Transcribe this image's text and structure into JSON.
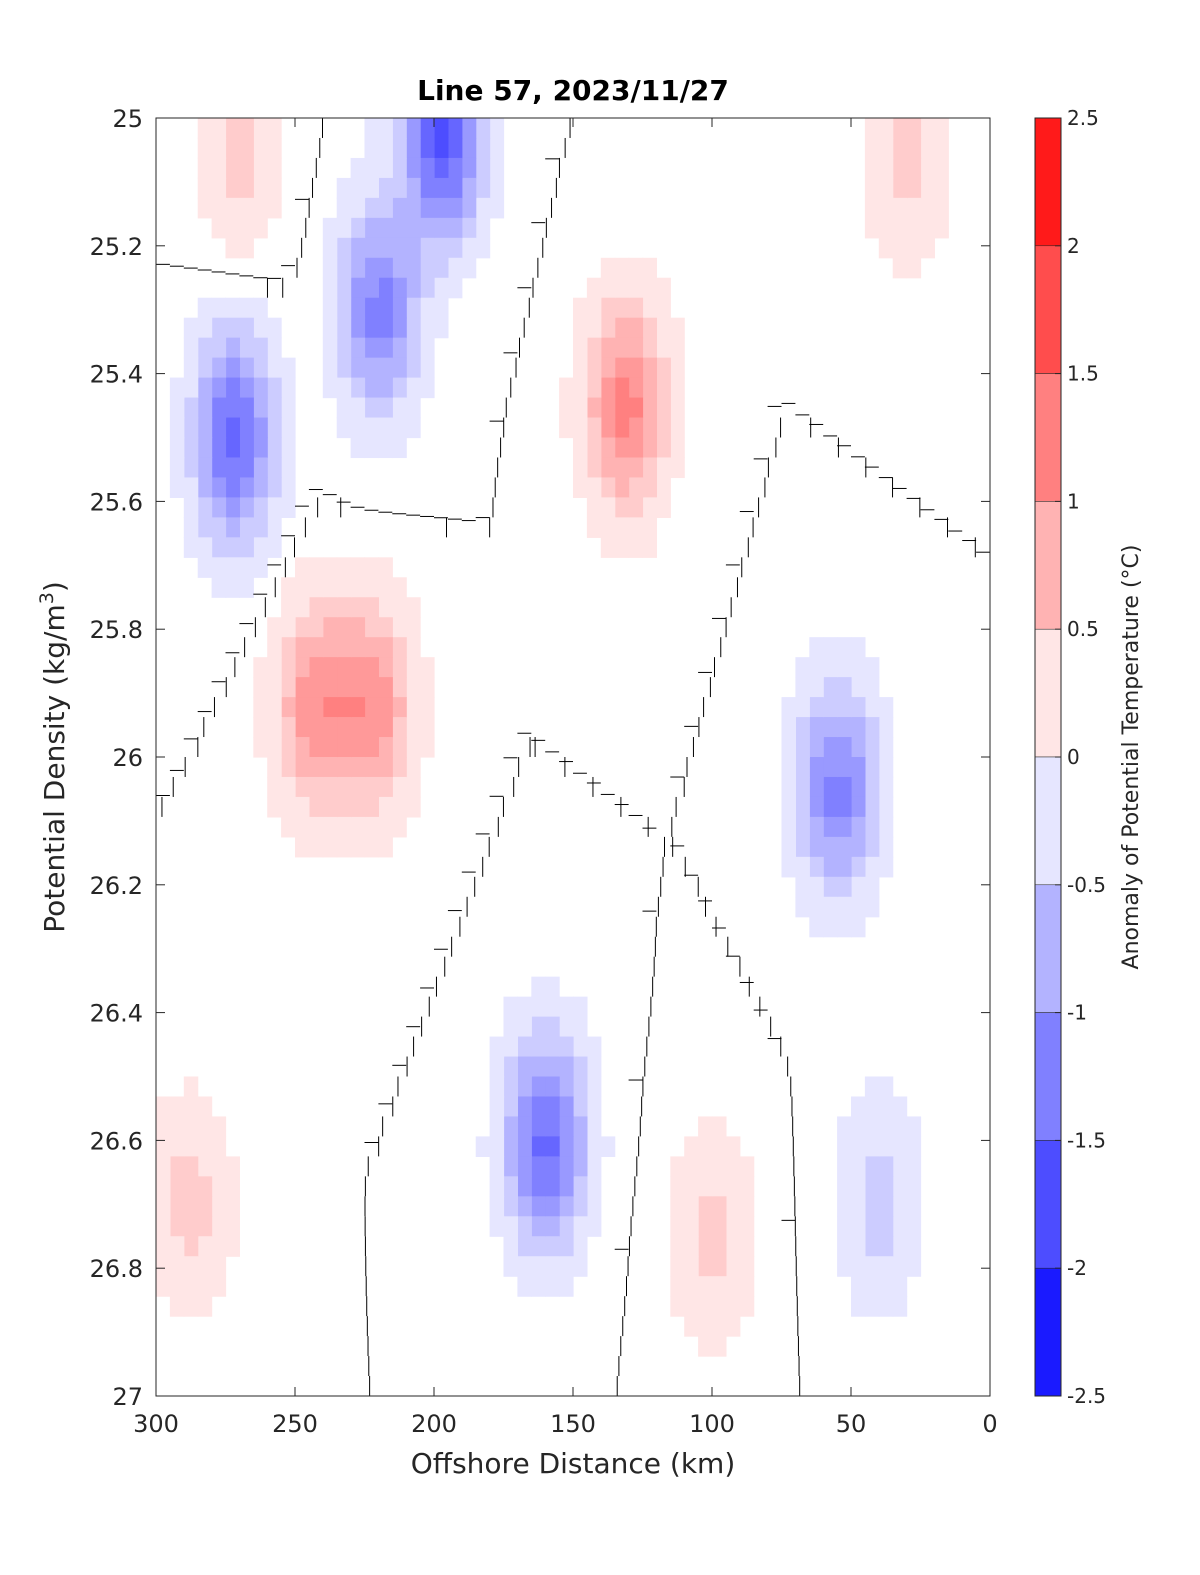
{
  "chart_data": {
    "type": "contourf",
    "title": "Line 57, 2023/11/27",
    "xlabel": "Offshore Distance (km)",
    "ylabel": "Potential Density (kg/m",
    "ylabel_sup": "3",
    "ylabel_tail": ")",
    "colorbar_label": "Anomaly of Potential Temperature (°C)",
    "xlim": [
      300,
      0
    ],
    "ylim": [
      25,
      27
    ],
    "x_reversed": true,
    "y_reversed": true,
    "xticks": [
      300,
      250,
      200,
      150,
      100,
      50,
      0
    ],
    "xtick_labels": [
      "300",
      "250",
      "200",
      "150",
      "100",
      "50",
      "0"
    ],
    "yticks": [
      25,
      25.2,
      25.4,
      25.6,
      25.8,
      26,
      26.2,
      26.4,
      26.6,
      26.8,
      27
    ],
    "ytick_labels": [
      "25",
      "25.2",
      "25.4",
      "25.6",
      "25.8",
      "26",
      "26.2",
      "26.4",
      "26.6",
      "26.8",
      "27"
    ],
    "colorbar": {
      "range": [
        -2.5,
        2.5
      ],
      "step": 0.25,
      "tick_values": [
        2.5,
        2,
        1.5,
        1,
        0.5,
        0,
        -0.5,
        -1,
        -1.5,
        -2,
        -2.5
      ],
      "tick_labels": [
        "2.5",
        "2",
        "1.5",
        "1",
        "0.5",
        "0",
        "-0.5",
        "-1",
        "-1.5",
        "-2",
        "-2.5"
      ],
      "colors": {
        "neg_max": "#0000ff",
        "zero": "#ffffff",
        "pos_max": "#ff0000"
      }
    },
    "anomaly_cores": [
      {
        "x": 272,
        "y": 25.5,
        "value": -1.5
      },
      {
        "x": 220,
        "y": 25.3,
        "value": -1.25
      },
      {
        "x": 197,
        "y": 25.02,
        "value": -1.75
      },
      {
        "x": 243,
        "y": 25.92,
        "value": 1.0
      },
      {
        "x": 222,
        "y": 25.92,
        "value": 1.0
      },
      {
        "x": 160,
        "y": 26.6,
        "value": -1.5
      },
      {
        "x": 131,
        "y": 25.45,
        "value": 1.25
      },
      {
        "x": 55,
        "y": 26.05,
        "value": -1.25
      },
      {
        "x": 288,
        "y": 26.7,
        "value": 0.5
      },
      {
        "x": 100,
        "y": 26.75,
        "value": 0.5
      },
      {
        "x": 30,
        "y": 25.05,
        "value": 0.5
      },
      {
        "x": 270,
        "y": 25.05,
        "value": 0.5
      },
      {
        "x": 40,
        "y": 26.7,
        "value": -0.5
      }
    ],
    "zero_contour_present": true,
    "grid": false
  }
}
